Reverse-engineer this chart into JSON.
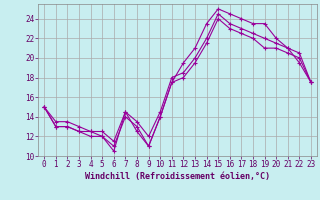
{
  "xlabel": "Windchill (Refroidissement éolien,°C)",
  "background_color": "#c8eef0",
  "grid_color": "#aaaaaa",
  "line_color": "#990099",
  "xlim": [
    -0.5,
    23.5
  ],
  "ylim": [
    10,
    25.5
  ],
  "yticks": [
    10,
    12,
    14,
    16,
    18,
    20,
    22,
    24
  ],
  "xticks": [
    0,
    1,
    2,
    3,
    4,
    5,
    6,
    7,
    8,
    9,
    10,
    11,
    12,
    13,
    14,
    15,
    16,
    17,
    18,
    19,
    20,
    21,
    22,
    23
  ],
  "series": [
    {
      "x": [
        0,
        1,
        2,
        3,
        4,
        5,
        6,
        7,
        8,
        9,
        10,
        11,
        12,
        13,
        14,
        15,
        16,
        17,
        18,
        19,
        20,
        21,
        22,
        23
      ],
      "y": [
        15,
        13,
        13,
        12.5,
        12,
        12,
        10.5,
        14.5,
        12.5,
        11,
        14,
        17.5,
        19.5,
        21,
        23.5,
        25,
        24.5,
        24,
        23.5,
        23.5,
        22,
        21,
        19.5,
        17.5
      ]
    },
    {
      "x": [
        0,
        1,
        2,
        3,
        4,
        5,
        6,
        7,
        8,
        9,
        10,
        11,
        12,
        13,
        14,
        15,
        16,
        17,
        18,
        19,
        20,
        21,
        22,
        23
      ],
      "y": [
        15,
        13,
        13,
        12.5,
        12.5,
        12,
        11,
        14,
        13,
        11,
        14,
        17.5,
        18,
        19.5,
        21.5,
        24,
        23,
        22.5,
        22,
        21,
        21,
        20.5,
        20,
        17.5
      ]
    },
    {
      "x": [
        0,
        1,
        2,
        3,
        4,
        5,
        6,
        7,
        8,
        9,
        10,
        11,
        12,
        13,
        14,
        15,
        16,
        17,
        18,
        19,
        20,
        21,
        22,
        23
      ],
      "y": [
        15,
        13.5,
        13.5,
        13,
        12.5,
        12.5,
        11.5,
        14.5,
        13.5,
        12,
        14.5,
        18,
        18.5,
        20,
        22,
        24.5,
        23.5,
        23,
        22.5,
        22,
        21.5,
        21,
        20.5,
        17.5
      ]
    }
  ]
}
